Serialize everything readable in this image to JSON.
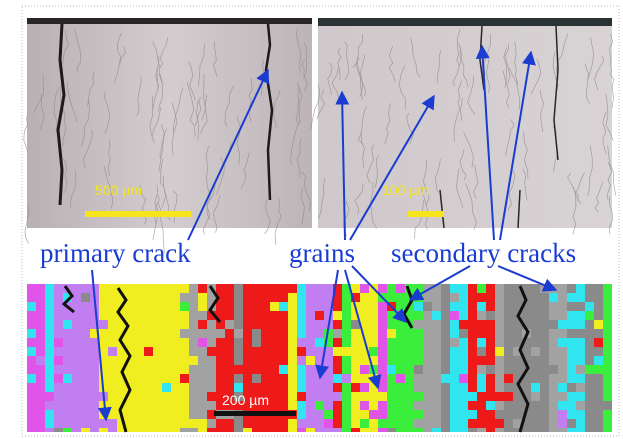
{
  "scale_bars": {
    "top_left": "500 µm",
    "top_right": "100 µm",
    "bottom": "200 µm"
  },
  "labels": {
    "primary_crack": "primary crack",
    "grains": "grains",
    "secondary_cracks": "secondary cracks"
  }
}
